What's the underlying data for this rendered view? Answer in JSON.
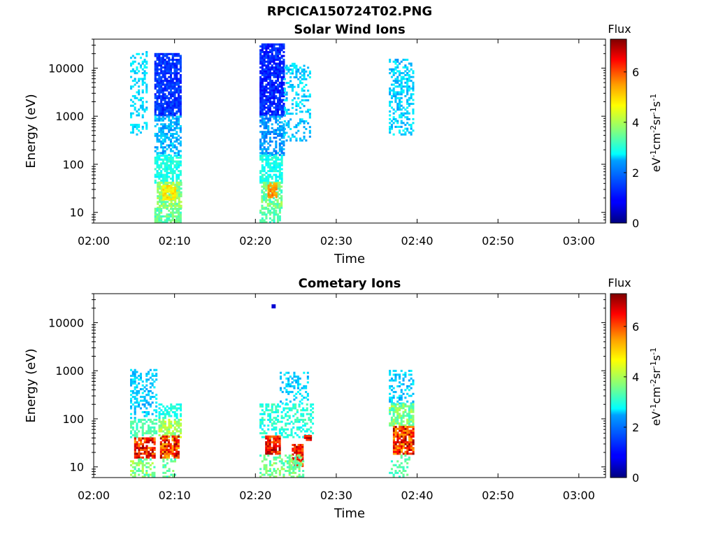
{
  "figure_title": "RPCICA150724T02.PNG",
  "colors": {
    "axis": "#000000",
    "background": "#ffffff"
  },
  "chart_data": [
    {
      "type": "heatmap",
      "title": "Solar Wind Ions",
      "xlabel": "Time",
      "ylabel": "Energy (eV)",
      "x_tick_labels": [
        "02:00",
        "02:10",
        "02:20",
        "02:30",
        "02:40",
        "02:50",
        "03:00"
      ],
      "x_ticks_min": [
        0,
        10,
        20,
        30,
        40,
        50,
        60
      ],
      "xlim_min": [
        0,
        63.3
      ],
      "y_scale": "log",
      "y_tick_labels": [
        "10",
        "100",
        "1000",
        "10000"
      ],
      "y_ticks": [
        10,
        100,
        1000,
        10000
      ],
      "ylim": [
        6,
        40000
      ],
      "colorbar": {
        "title": "Flux",
        "units": "eV-1cm-2sr-1s-1",
        "ticks": [
          "0",
          "2",
          "4",
          "6"
        ],
        "range": [
          0,
          7.3
        ],
        "colormap": "jet"
      },
      "regions": [
        {
          "t": [
            4.5,
            6.5
          ],
          "e": [
            400,
            22000
          ],
          "flux": [
            2.2,
            2.8
          ],
          "density": 0.35
        },
        {
          "t": [
            7.5,
            10.8
          ],
          "e": [
            1000,
            20000
          ],
          "flux": [
            1.0,
            1.6
          ],
          "density": 0.85
        },
        {
          "t": [
            7.5,
            10.8
          ],
          "e": [
            150,
            1000
          ],
          "flux": [
            1.8,
            2.6
          ],
          "density": 0.6
        },
        {
          "t": [
            7.5,
            10.8
          ],
          "e": [
            40,
            150
          ],
          "flux": [
            2.6,
            3.2
          ],
          "density": 0.7
        },
        {
          "t": [
            7.8,
            10.8
          ],
          "e": [
            12,
            40
          ],
          "flux": [
            3.2,
            4.2
          ],
          "density": 0.8
        },
        {
          "t": [
            8.5,
            10.0
          ],
          "e": [
            18,
            35
          ],
          "flux": [
            4.3,
            5.0
          ],
          "density": 0.9
        },
        {
          "t": [
            7.5,
            10.8
          ],
          "e": [
            6,
            12
          ],
          "flux": [
            3.0,
            3.8
          ],
          "density": 0.8
        },
        {
          "t": [
            20.5,
            23.5
          ],
          "e": [
            1000,
            30000
          ],
          "flux": [
            0.8,
            1.5
          ],
          "density": 0.85
        },
        {
          "t": [
            20.5,
            23.5
          ],
          "e": [
            150,
            1000
          ],
          "flux": [
            1.6,
            2.4
          ],
          "density": 0.6
        },
        {
          "t": [
            20.5,
            23.3
          ],
          "e": [
            40,
            150
          ],
          "flux": [
            2.6,
            3.2
          ],
          "density": 0.7
        },
        {
          "t": [
            20.7,
            23.3
          ],
          "e": [
            12,
            40
          ],
          "flux": [
            3.0,
            4.0
          ],
          "density": 0.7
        },
        {
          "t": [
            21.5,
            22.6
          ],
          "e": [
            20,
            40
          ],
          "flux": [
            5.0,
            5.7
          ],
          "density": 0.9
        },
        {
          "t": [
            20.5,
            23.0
          ],
          "e": [
            6,
            12
          ],
          "flux": [
            3.0,
            3.6
          ],
          "density": 0.6
        },
        {
          "t": [
            23.5,
            26.8
          ],
          "e": [
            300,
            12000
          ],
          "flux": [
            2.0,
            2.8
          ],
          "density": 0.3
        },
        {
          "t": [
            36.5,
            39.5
          ],
          "e": [
            400,
            15000
          ],
          "flux": [
            2.0,
            2.8
          ],
          "density": 0.45
        }
      ]
    },
    {
      "type": "heatmap",
      "title": "Cometary Ions",
      "xlabel": "Time",
      "ylabel": "Energy (eV)",
      "x_tick_labels": [
        "02:00",
        "02:10",
        "02:20",
        "02:30",
        "02:40",
        "02:50",
        "03:00"
      ],
      "x_ticks_min": [
        0,
        10,
        20,
        30,
        40,
        50,
        60
      ],
      "xlim_min": [
        0,
        63.3
      ],
      "y_scale": "log",
      "y_tick_labels": [
        "10",
        "100",
        "1000",
        "10000"
      ],
      "y_ticks": [
        10,
        100,
        1000,
        10000
      ],
      "ylim": [
        6,
        40000
      ],
      "colorbar": {
        "title": "Flux",
        "units": "eV-1cm-2sr-1s-1",
        "ticks": [
          "0",
          "2",
          "4",
          "6"
        ],
        "range": [
          0,
          7.3
        ],
        "colormap": "jet"
      },
      "regions": [
        {
          "t": [
            4.5,
            7.8
          ],
          "e": [
            100,
            1000
          ],
          "flux": [
            2.0,
            2.8
          ],
          "density": 0.35
        },
        {
          "t": [
            8.0,
            10.8
          ],
          "e": [
            100,
            200
          ],
          "flux": [
            2.6,
            3.2
          ],
          "density": 0.5
        },
        {
          "t": [
            4.5,
            7.8
          ],
          "e": [
            40,
            100
          ],
          "flux": [
            3.0,
            3.6
          ],
          "density": 0.5
        },
        {
          "t": [
            8.0,
            10.8
          ],
          "e": [
            40,
            100
          ],
          "flux": [
            3.4,
            4.4
          ],
          "density": 0.7
        },
        {
          "t": [
            5.0,
            7.5
          ],
          "e": [
            15,
            40
          ],
          "flux": [
            5.2,
            7.2
          ],
          "density": 0.8
        },
        {
          "t": [
            8.2,
            10.5
          ],
          "e": [
            15,
            45
          ],
          "flux": [
            5.0,
            7.2
          ],
          "density": 0.85
        },
        {
          "t": [
            4.5,
            7.5
          ],
          "e": [
            6,
            15
          ],
          "flux": [
            3.0,
            4.2
          ],
          "density": 0.5
        },
        {
          "t": [
            8.5,
            10.0
          ],
          "e": [
            6,
            15
          ],
          "flux": [
            3.0,
            3.8
          ],
          "density": 0.4
        },
        {
          "t": [
            20.5,
            27.0
          ],
          "e": [
            40,
            200
          ],
          "flux": [
            2.6,
            3.4
          ],
          "density": 0.4
        },
        {
          "t": [
            23.0,
            26.5
          ],
          "e": [
            200,
            900
          ],
          "flux": [
            2.0,
            2.8
          ],
          "density": 0.3
        },
        {
          "t": [
            21.2,
            23.0
          ],
          "e": [
            18,
            45
          ],
          "flux": [
            5.5,
            7.2
          ],
          "density": 0.9
        },
        {
          "t": [
            24.5,
            25.8
          ],
          "e": [
            10,
            30
          ],
          "flux": [
            5.5,
            7.0
          ],
          "density": 0.85
        },
        {
          "t": [
            26.0,
            26.8
          ],
          "e": [
            35,
            45
          ],
          "flux": [
            6.0,
            7.2
          ],
          "density": 0.9
        },
        {
          "t": [
            20.5,
            26.0
          ],
          "e": [
            6,
            18
          ],
          "flux": [
            3.0,
            4.0
          ],
          "density": 0.45
        },
        {
          "t": [
            36.5,
            39.5
          ],
          "e": [
            200,
            1000
          ],
          "flux": [
            2.0,
            2.8
          ],
          "density": 0.35
        },
        {
          "t": [
            36.5,
            39.5
          ],
          "e": [
            70,
            200
          ],
          "flux": [
            3.0,
            4.2
          ],
          "density": 0.75
        },
        {
          "t": [
            37.0,
            39.5
          ],
          "e": [
            18,
            70
          ],
          "flux": [
            5.0,
            7.2
          ],
          "density": 0.9
        },
        {
          "t": [
            36.5,
            39.0
          ],
          "e": [
            6,
            18
          ],
          "flux": [
            3.0,
            3.6
          ],
          "density": 0.3
        },
        {
          "t": [
            22.0,
            22.3
          ],
          "e": [
            20000,
            23000
          ],
          "flux": [
            0.5,
            0.7
          ],
          "density": 1.0
        }
      ]
    }
  ]
}
